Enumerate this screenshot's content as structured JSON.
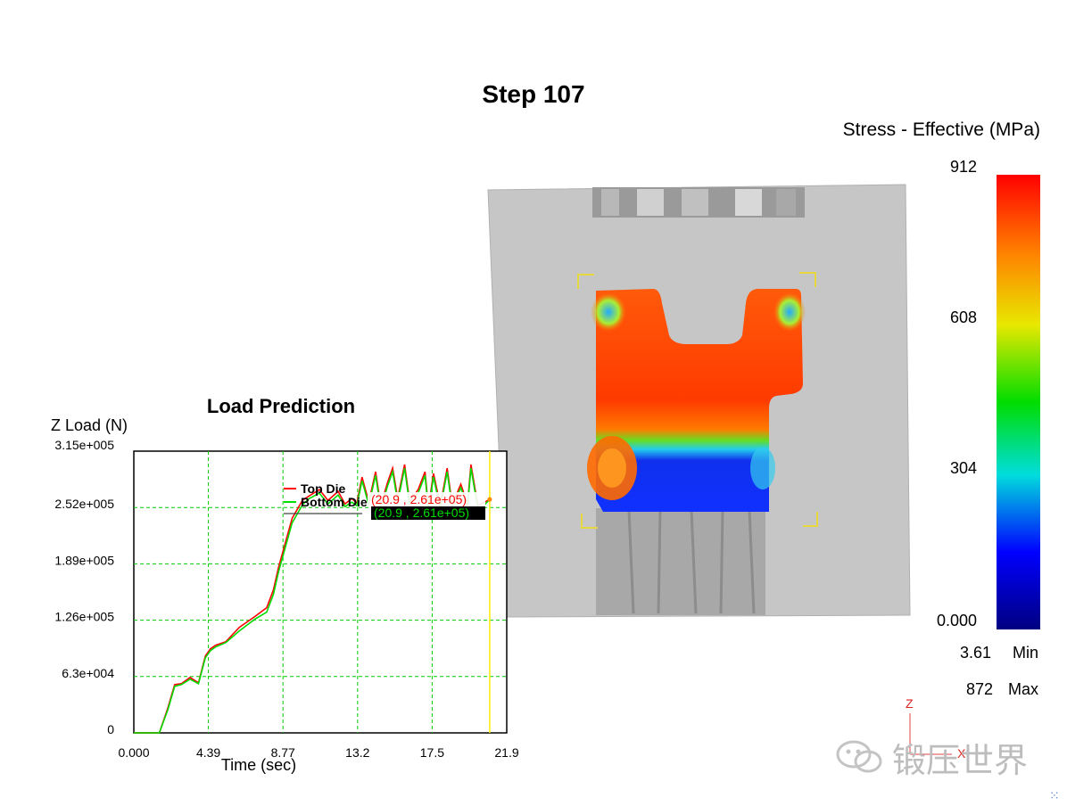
{
  "header": {
    "step_label": "Step  107"
  },
  "legend": {
    "title": "Stress - Effective (MPa)",
    "scale_labels": [
      "912",
      "608",
      "304",
      "0.000"
    ],
    "min_value": "3.61",
    "min_label": "Min",
    "max_value": "872",
    "max_label": "Max"
  },
  "axis_triad": {
    "z_label": "Z",
    "x_label": "X"
  },
  "watermark": {
    "text": "锻压世界",
    "icon": "wechat-icon"
  },
  "colors": {
    "top_die": "#ff0000",
    "bottom_die": "#00dd00",
    "grid": "#00cc00",
    "cursor": "#ffee00",
    "die_gray": "#c8c8c8"
  },
  "chart_data": {
    "type": "line",
    "title": "Load Prediction",
    "xlabel": "Time (sec)",
    "ylabel": "Z Load (N)",
    "xlim": [
      0,
      21.9
    ],
    "ylim": [
      0,
      315000
    ],
    "x_ticks": [
      "0.000",
      "4.39",
      "8.77",
      "13.2",
      "17.5",
      "21.9"
    ],
    "y_ticks": [
      "0",
      "6.3e+004",
      "1.26e+005",
      "1.89e+005",
      "2.52e+005",
      "3.15e+005"
    ],
    "grid": true,
    "cursor_x": 20.9,
    "series": [
      {
        "name": "Top Die",
        "cursor_readout": "(20.9 , 2.61e+05)",
        "x": [
          0,
          1.5,
          2.0,
          2.4,
          2.8,
          3.3,
          3.8,
          4.2,
          4.5,
          4.8,
          5.4,
          6.2,
          7.1,
          7.8,
          8.2,
          8.5,
          9.3,
          9.9,
          10.3,
          10.9,
          11.4,
          12.0,
          12.4,
          12.8,
          13.1,
          13.4,
          13.8,
          14.2,
          14.5,
          14.9,
          15.2,
          15.5,
          15.9,
          16.2,
          16.7,
          17.1,
          17.3,
          17.6,
          18.0,
          18.4,
          18.7,
          19.2,
          19.6,
          19.8,
          20.2,
          20.6,
          20.9
        ],
        "values": [
          0,
          0,
          28000,
          54000,
          55000,
          62000,
          56000,
          86000,
          94000,
          98000,
          102000,
          118000,
          130000,
          140000,
          160000,
          185000,
          240000,
          260000,
          265000,
          272000,
          260000,
          270000,
          256000,
          262000,
          257000,
          286000,
          258000,
          292000,
          254000,
          280000,
          296000,
          262000,
          300000,
          258000,
          272000,
          292000,
          252000,
          290000,
          254000,
          296000,
          255000,
          278000,
          256000,
          300000,
          254000,
          258000,
          261000
        ]
      },
      {
        "name": "Bottom Die",
        "cursor_readout": "(20.9 , 2.61e+05)",
        "x": [
          0,
          1.5,
          2.0,
          2.4,
          2.8,
          3.3,
          3.8,
          4.2,
          4.5,
          4.8,
          5.4,
          6.2,
          7.1,
          7.8,
          8.2,
          8.5,
          9.3,
          9.9,
          10.3,
          10.9,
          11.4,
          12.0,
          12.4,
          12.8,
          13.1,
          13.4,
          13.8,
          14.2,
          14.5,
          14.9,
          15.2,
          15.5,
          15.9,
          16.2,
          16.7,
          17.1,
          17.3,
          17.6,
          18.0,
          18.4,
          18.7,
          19.2,
          19.6,
          19.8,
          20.2,
          20.6,
          20.9
        ],
        "values": [
          0,
          0,
          26000,
          52000,
          54000,
          60000,
          55000,
          84000,
          92000,
          96000,
          101000,
          114000,
          127000,
          135000,
          155000,
          180000,
          235000,
          255000,
          262000,
          268000,
          256000,
          266000,
          253000,
          258000,
          254000,
          282000,
          255000,
          288000,
          250000,
          276000,
          292000,
          258000,
          296000,
          255000,
          268000,
          288000,
          249000,
          286000,
          250000,
          292000,
          252000,
          274000,
          253000,
          296000,
          251000,
          255000,
          261000
        ]
      }
    ]
  }
}
